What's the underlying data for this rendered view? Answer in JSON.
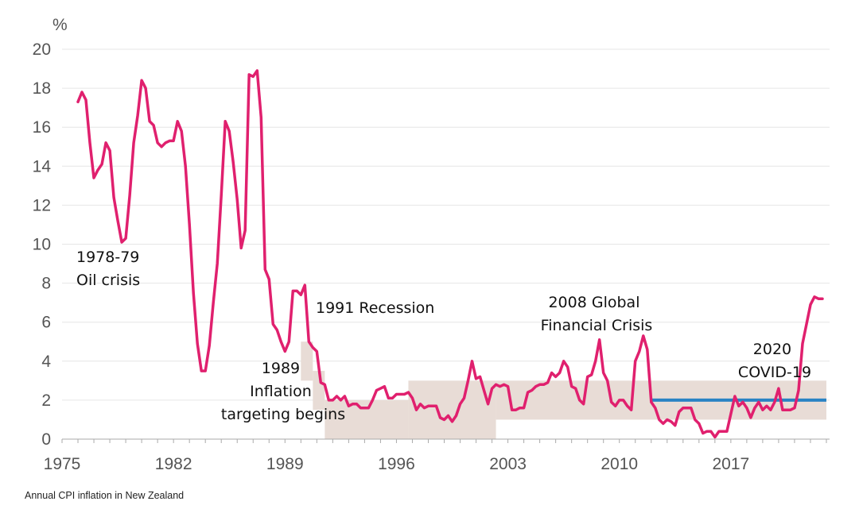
{
  "caption": "Annual CPI inflation in New Zealand",
  "chart_data": {
    "type": "line",
    "title": "",
    "xlabel": "",
    "ylabel": "%",
    "xlim": [
      1975,
      2023.2
    ],
    "ylim": [
      0,
      20
    ],
    "grid": true,
    "x_ticks": [
      "1975",
      "1982",
      "1989",
      "1996",
      "2003",
      "2010",
      "2017"
    ],
    "y_ticks": [
      "0",
      "2",
      "4",
      "6",
      "8",
      "10",
      "12",
      "14",
      "16",
      "18",
      "20"
    ],
    "colors": {
      "series": "#e0206e",
      "target_line": "#2a83c4",
      "bands": "#e8dcd6",
      "grid": "#e6e6e6"
    },
    "series": [
      {
        "name": "Annual CPI inflation",
        "x": [
          1976.0,
          1976.25,
          1976.5,
          1976.75,
          1977.0,
          1977.25,
          1977.5,
          1977.75,
          1978.0,
          1978.25,
          1978.5,
          1978.75,
          1979.0,
          1979.25,
          1979.5,
          1979.75,
          1980.0,
          1980.25,
          1980.5,
          1980.75,
          1981.0,
          1981.25,
          1981.5,
          1981.75,
          1982.0,
          1982.25,
          1982.5,
          1982.75,
          1983.0,
          1983.25,
          1983.5,
          1983.75,
          1984.0,
          1984.25,
          1984.5,
          1984.75,
          1985.0,
          1985.25,
          1985.5,
          1985.75,
          1986.0,
          1986.25,
          1986.5,
          1986.75,
          1987.0,
          1987.25,
          1987.5,
          1987.75,
          1988.0,
          1988.25,
          1988.5,
          1988.75,
          1989.0,
          1989.25,
          1989.5,
          1989.75,
          1990.0,
          1990.25,
          1990.5,
          1990.75,
          1991.0,
          1991.25,
          1991.5,
          1991.75,
          1992.0,
          1992.25,
          1992.5,
          1992.75,
          1993.0,
          1993.25,
          1993.5,
          1993.75,
          1994.0,
          1994.25,
          1994.5,
          1994.75,
          1995.0,
          1995.25,
          1995.5,
          1995.75,
          1996.0,
          1996.25,
          1996.5,
          1996.75,
          1997.0,
          1997.25,
          1997.5,
          1997.75,
          1998.0,
          1998.25,
          1998.5,
          1998.75,
          1999.0,
          1999.25,
          1999.5,
          1999.75,
          2000.0,
          2000.25,
          2000.5,
          2000.75,
          2001.0,
          2001.25,
          2001.5,
          2001.75,
          2002.0,
          2002.25,
          2002.5,
          2002.75,
          2003.0,
          2003.25,
          2003.5,
          2003.75,
          2004.0,
          2004.25,
          2004.5,
          2004.75,
          2005.0,
          2005.25,
          2005.5,
          2005.75,
          2006.0,
          2006.25,
          2006.5,
          2006.75,
          2007.0,
          2007.25,
          2007.5,
          2007.75,
          2008.0,
          2008.25,
          2008.5,
          2008.75,
          2009.0,
          2009.25,
          2009.5,
          2009.75,
          2010.0,
          2010.25,
          2010.5,
          2010.75,
          2011.0,
          2011.25,
          2011.5,
          2011.75,
          2012.0,
          2012.25,
          2012.5,
          2012.75,
          2013.0,
          2013.25,
          2013.5,
          2013.75,
          2014.0,
          2014.25,
          2014.5,
          2014.75,
          2015.0,
          2015.25,
          2015.5,
          2015.75,
          2016.0,
          2016.25,
          2016.5,
          2016.75,
          2017.0,
          2017.25,
          2017.5,
          2017.75,
          2018.0,
          2018.25,
          2018.5,
          2018.75,
          2019.0,
          2019.25,
          2019.5,
          2019.75,
          2020.0,
          2020.25,
          2020.5,
          2020.75,
          2021.0,
          2021.25,
          2021.5,
          2021.75,
          2022.0,
          2022.25,
          2022.5,
          2022.75
        ],
        "values": [
          17.3,
          17.8,
          17.4,
          15.2,
          13.4,
          13.8,
          14.1,
          15.2,
          14.8,
          12.4,
          11.2,
          10.1,
          10.3,
          12.5,
          15.2,
          16.6,
          18.4,
          18.0,
          16.3,
          16.1,
          15.2,
          15.0,
          15.2,
          15.3,
          15.3,
          16.3,
          15.8,
          14.0,
          11.0,
          7.5,
          4.9,
          3.5,
          3.5,
          4.8,
          7.0,
          9.0,
          12.5,
          16.3,
          15.8,
          14.2,
          12.3,
          9.8,
          10.7,
          18.7,
          18.6,
          18.9,
          16.5,
          8.7,
          8.2,
          5.9,
          5.6,
          5.0,
          4.5,
          5.0,
          7.6,
          7.6,
          7.4,
          7.9,
          5.0,
          4.7,
          4.5,
          2.9,
          2.8,
          2.0,
          2.0,
          2.2,
          2.0,
          2.2,
          1.7,
          1.8,
          1.8,
          1.6,
          1.6,
          1.6,
          2.0,
          2.5,
          2.6,
          2.7,
          2.1,
          2.1,
          2.3,
          2.3,
          2.3,
          2.4,
          2.1,
          1.5,
          1.8,
          1.6,
          1.7,
          1.7,
          1.7,
          1.1,
          1.0,
          1.2,
          0.9,
          1.2,
          1.8,
          2.1,
          3.0,
          4.0,
          3.1,
          3.2,
          2.5,
          1.8,
          2.6,
          2.8,
          2.7,
          2.8,
          2.7,
          1.5,
          1.5,
          1.6,
          1.6,
          2.4,
          2.5,
          2.7,
          2.8,
          2.8,
          2.9,
          3.4,
          3.2,
          3.4,
          4.0,
          3.7,
          2.7,
          2.6,
          2.0,
          1.8,
          3.2,
          3.3,
          4.0,
          5.1,
          3.4,
          3.0,
          1.9,
          1.7,
          2.0,
          2.0,
          1.7,
          1.5,
          4.0,
          4.5,
          5.3,
          4.6,
          1.9,
          1.6,
          1.0,
          0.8,
          1.0,
          0.9,
          0.7,
          1.4,
          1.6,
          1.6,
          1.6,
          1.0,
          0.8,
          0.3,
          0.4,
          0.4,
          0.1,
          0.4,
          0.4,
          0.4,
          1.3,
          2.2,
          1.7,
          1.9,
          1.6,
          1.1,
          1.6,
          1.9,
          1.5,
          1.7,
          1.5,
          1.9,
          2.6,
          1.5,
          1.5,
          1.5,
          1.6,
          2.5,
          4.9,
          5.9,
          6.9,
          7.3,
          7.2,
          7.2
        ]
      }
    ],
    "target_bands": [
      {
        "x0": 1990.0,
        "x1": 1990.75,
        "low": 3,
        "high": 5
      },
      {
        "x0": 1990.75,
        "x1": 1991.5,
        "low": 1.5,
        "high": 3.5
      },
      {
        "x0": 1991.5,
        "x1": 1996.75,
        "low": 0,
        "high": 2
      },
      {
        "x0": 1996.75,
        "x1": 2002.25,
        "low": 0,
        "high": 3
      },
      {
        "x0": 2002.25,
        "x1": 2023.0,
        "low": 1,
        "high": 3
      }
    ],
    "target_line": {
      "x0": 2012.0,
      "x1": 2023.0,
      "value": 2
    },
    "annotations": {
      "oil_crisis": [
        "1978-79",
        "Oil crisis"
      ],
      "recession_1991": [
        "1991 Recession"
      ],
      "inflation_targeting": [
        "1989",
        "Inflation",
        "targeting begins"
      ],
      "gfc_2008": [
        "2008 Global",
        "Financial Crisis"
      ],
      "covid_2020": [
        "2020",
        "COVID-19"
      ]
    }
  }
}
